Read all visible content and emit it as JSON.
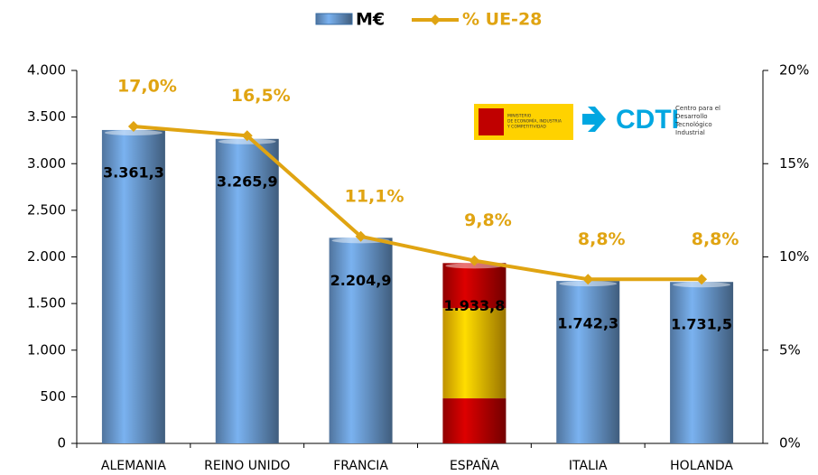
{
  "chart_data": {
    "type": "bar_line",
    "categories": [
      "ALEMANIA",
      "REINO UNIDO",
      "FRANCIA",
      "ESPAÑA",
      "ITALIA",
      "HOLANDA"
    ],
    "series": [
      {
        "name": "M€",
        "type": "bar",
        "color": "#6a9bd1",
        "colors": [
          "#6a9bd1",
          "#6a9bd1",
          "#6a9bd1",
          [
            "#c00000",
            "#ffc000",
            "#c00000"
          ],
          "#6a9bd1",
          "#6a9bd1"
        ],
        "values": [
          3361.3,
          3265.9,
          2204.9,
          1933.8,
          1742.3,
          1731.5
        ],
        "value_labels": [
          "3.361,3",
          "3.265,9",
          "2.204,9",
          "1.933,8",
          "1.742,3",
          "1.731,5"
        ]
      },
      {
        "name": "% UE-28",
        "type": "line",
        "axis": "y2",
        "color": "#e0a412",
        "values": [
          17.0,
          16.5,
          11.1,
          9.8,
          8.8,
          8.8
        ],
        "value_labels": [
          "17,0%",
          "16,5%",
          "11,1%",
          "9,8%",
          "8,8%",
          "8,8%"
        ]
      }
    ],
    "ylim": [
      0,
      4000
    ],
    "yticks": [
      0,
      500,
      {
        "value": 1000,
        "label": "1.000"
      },
      {
        "value": 1500,
        "label": "1.500"
      },
      {
        "value": 2000,
        "label": "2.000"
      },
      {
        "value": 2500,
        "label": "2.500"
      },
      {
        "value": 3000,
        "label": "3.000"
      },
      {
        "value": 3500,
        "label": "3.500"
      },
      {
        "value": 4000,
        "label": "4.000"
      }
    ],
    "y2lim": [
      0,
      20
    ],
    "y2ticks": [
      {
        "value": 0,
        "label": "0%"
      },
      {
        "value": 5,
        "label": "5%"
      },
      {
        "value": 10,
        "label": "10%"
      },
      {
        "value": 15,
        "label": "15%"
      },
      {
        "value": 20,
        "label": "20%"
      }
    ],
    "legend": "top",
    "logo": {
      "ministerio": [
        "MINISTERIO",
        "DE ECONOMÍA, INDUSTRIA",
        "Y COMPETITIVIDAD"
      ],
      "cdti": "CDTI",
      "centro": [
        "Centro para el",
        "Desarrollo",
        "Tecnológico",
        "Industrial"
      ]
    }
  }
}
